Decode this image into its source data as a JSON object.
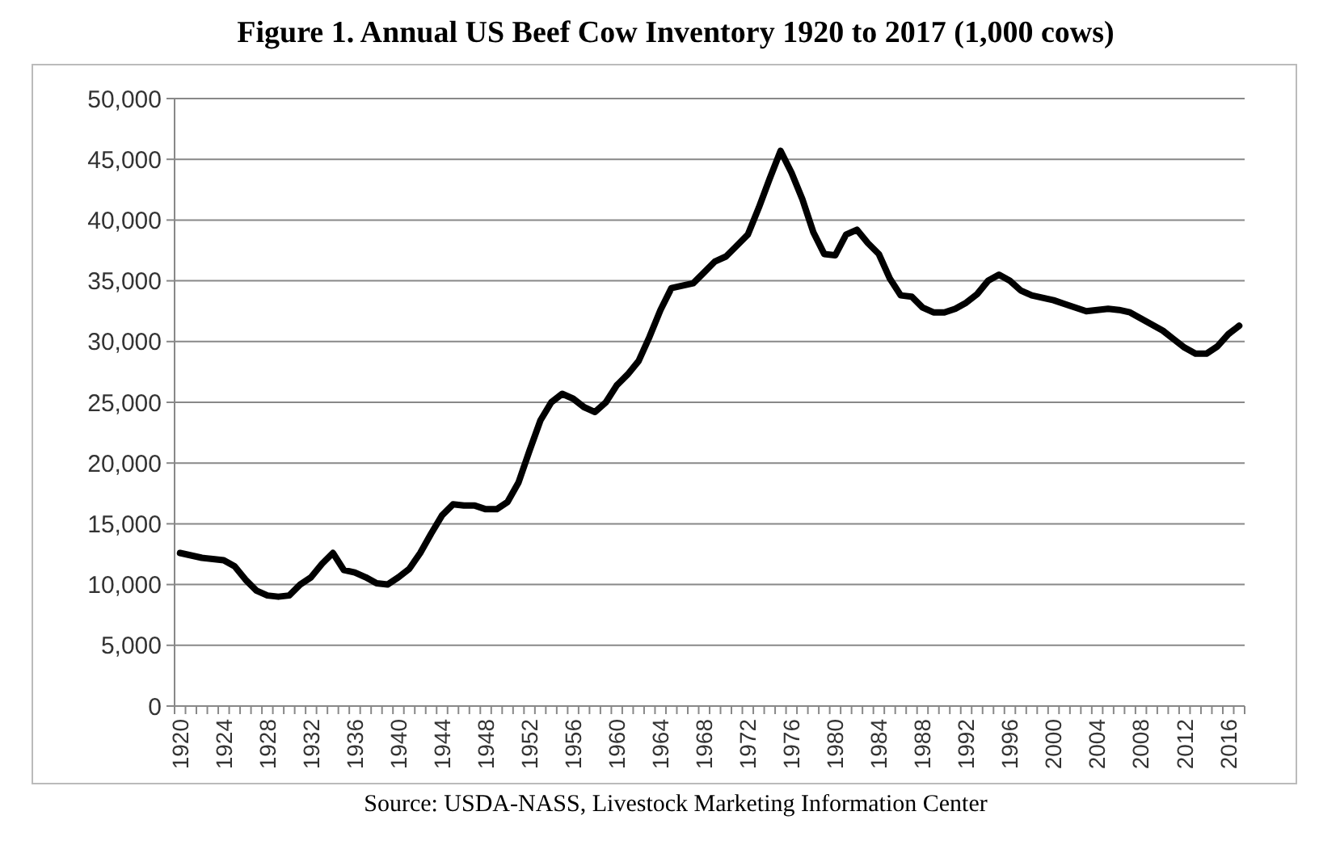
{
  "chart_data": {
    "type": "line",
    "title": "Figure 1. Annual US Beef Cow Inventory 1920 to 2017 (1,000 cows)",
    "annotations": [
      "Source: USDA-NASS, Livestock Marketing Information Center"
    ],
    "categories": [
      "1920",
      null,
      null,
      null,
      "1924",
      null,
      null,
      null,
      "1928",
      null,
      null,
      null,
      "1932",
      null,
      null,
      null,
      "1936",
      null,
      null,
      null,
      "1940",
      null,
      null,
      null,
      "1944",
      null,
      null,
      null,
      "1948",
      null,
      null,
      null,
      "1952",
      null,
      null,
      null,
      "1956",
      null,
      null,
      null,
      "1960",
      null,
      null,
      null,
      "1964",
      null,
      null,
      null,
      "1968",
      null,
      null,
      null,
      "1972",
      null,
      null,
      null,
      "1976",
      null,
      null,
      null,
      "1980",
      null,
      null,
      null,
      "1984",
      null,
      null,
      null,
      "1988",
      null,
      null,
      null,
      "1992",
      null,
      null,
      null,
      "1996",
      null,
      null,
      null,
      "2000",
      null,
      null,
      null,
      "2004",
      null,
      null,
      null,
      "2008",
      null,
      null,
      null,
      "2012",
      null,
      null,
      null,
      "2016",
      null
    ],
    "series": [
      {
        "color": "#000000",
        "values": [
          12600,
          12400,
          12200,
          12100,
          12000,
          11500,
          10400,
          9500,
          9100,
          9000,
          9100,
          10000,
          10600,
          11700,
          12600,
          11200,
          11000,
          10600,
          10100,
          10000,
          10600,
          11300,
          12600,
          14200,
          15700,
          16600,
          16500,
          16500,
          16200,
          16200,
          16800,
          18400,
          21000,
          23500,
          25000,
          25700,
          25300,
          24600,
          24200,
          25000,
          26400,
          27300,
          28400,
          30400,
          32600,
          34400,
          34600,
          34800,
          35700,
          36600,
          37000,
          37900,
          38800,
          41000,
          43400,
          45700,
          43900,
          41700,
          39000,
          37200,
          37100,
          38800,
          39200,
          38100,
          37200,
          35200,
          33800,
          33700,
          32800,
          32400,
          32400,
          32700,
          33200,
          33900,
          35000,
          35500,
          35000,
          34200,
          33800,
          33600,
          33400,
          33100,
          32800,
          32500,
          32600,
          32700,
          32600,
          32400,
          31900,
          31400,
          30900,
          30200,
          29500,
          29000,
          29000,
          29600,
          30600,
          31300
        ]
      }
    ],
    "ylim": [
      0,
      50000
    ],
    "yticks": [
      {
        "value": 0,
        "label": "0"
      },
      {
        "value": 5000,
        "label": "5,000"
      },
      {
        "value": 10000,
        "label": "10,000"
      },
      {
        "value": 15000,
        "label": "15,000"
      },
      {
        "value": 20000,
        "label": "20,000"
      },
      {
        "value": 25000,
        "label": "25,000"
      },
      {
        "value": 30000,
        "label": "30,000"
      },
      {
        "value": 35000,
        "label": "35,000"
      },
      {
        "value": 40000,
        "label": "40,000"
      },
      {
        "value": 45000,
        "label": "45,000"
      },
      {
        "value": 50000,
        "label": "50,000"
      }
    ],
    "grid": "y",
    "legend": false,
    "marker": "none",
    "line_style": "solid"
  }
}
